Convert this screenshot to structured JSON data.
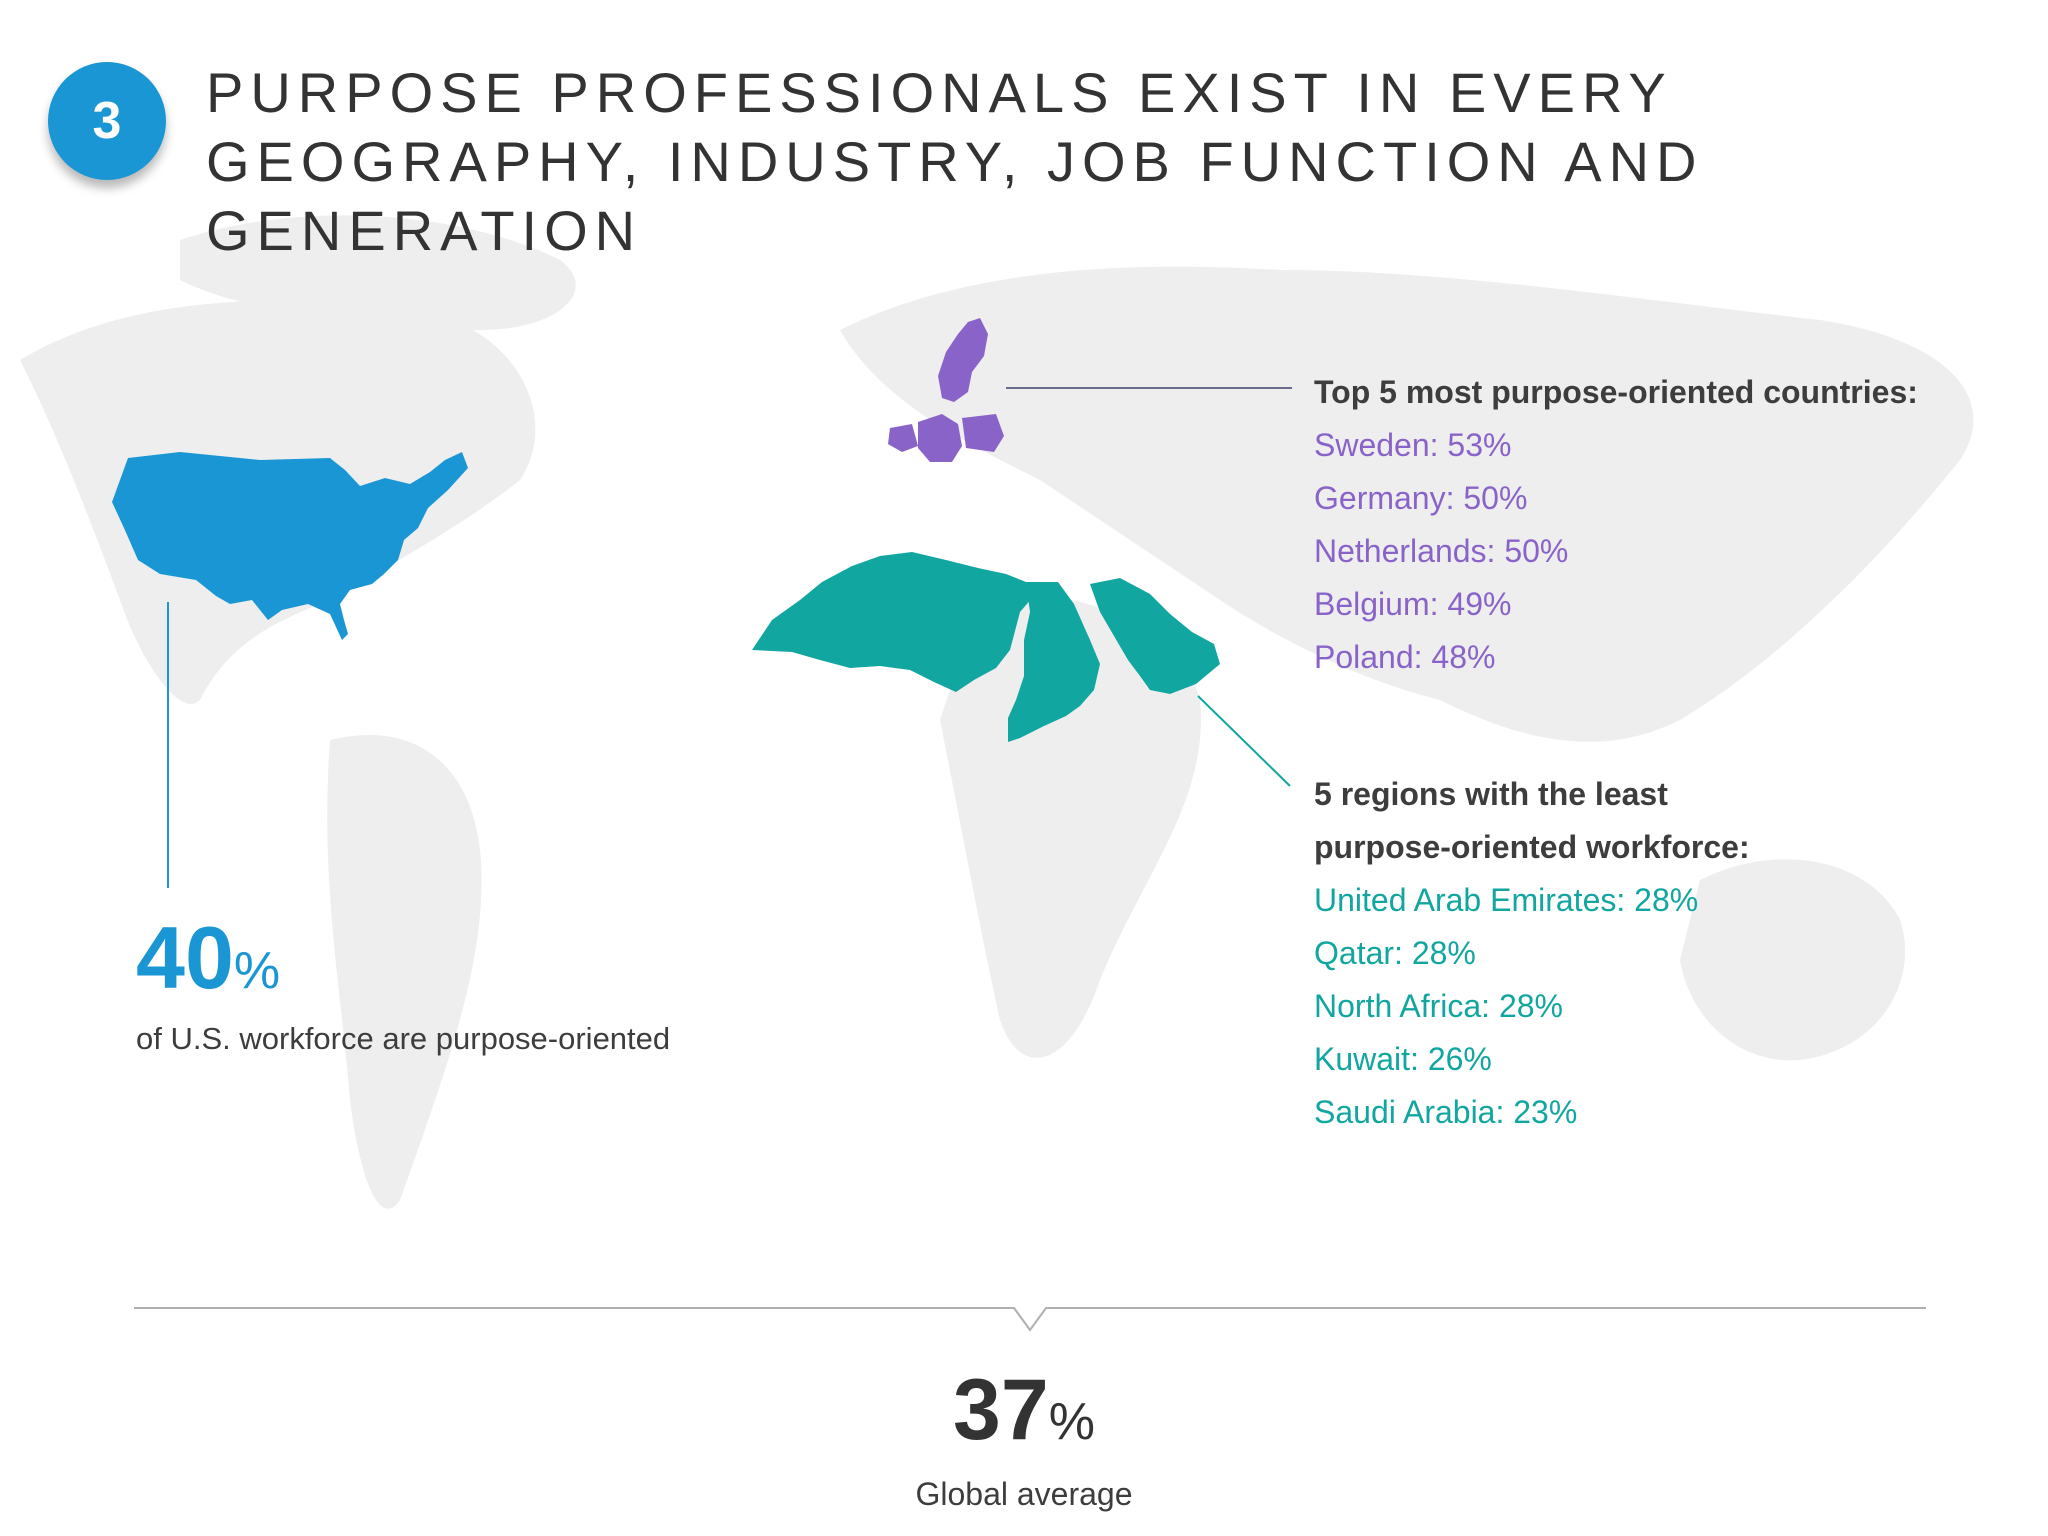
{
  "badge": "3",
  "heading": "PURPOSE PROFESSIONALS EXIST IN EVERY GEOGRAPHY, INDUSTRY, JOB FUNCTION AND GENERATION",
  "colors": {
    "us": "#1a96d4",
    "top_countries": "#8a63c9",
    "least_regions": "#11a6a0",
    "landmass": "#eeeeef"
  },
  "top_countries": {
    "heading": "Top 5 most purpose-oriented countries:",
    "items": [
      "Sweden: 53%",
      "Germany: 50%",
      "Netherlands: 50%",
      "Belgium: 49%",
      "Poland: 48%"
    ]
  },
  "least_regions": {
    "heading_line1": "5 regions with the least",
    "heading_line2": "purpose-oriented workforce:",
    "items": [
      "United Arab Emirates: 28%",
      "Qatar: 28%",
      "North Africa: 28%",
      "Kuwait: 26%",
      "Saudi Arabia: 23%"
    ]
  },
  "us_stat": {
    "value": "40",
    "unit": "%",
    "label": "of U.S. workforce are purpose-oriented"
  },
  "global_stat": {
    "value": "37",
    "unit": "%",
    "label": "Global average"
  }
}
